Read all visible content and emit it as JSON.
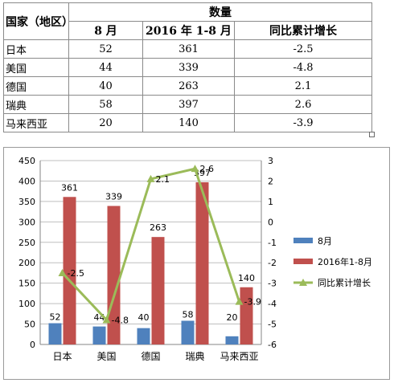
{
  "table": {
    "header_country": "国家（地区）",
    "header_quantity": "数量",
    "col_labels": [
      "8 月",
      "2016 年 1-8 月",
      "同比累计增长"
    ],
    "rows": [
      {
        "country": "日本",
        "aug": "52",
        "ytd": "361",
        "growth": "-2.5"
      },
      {
        "country": "美国",
        "aug": "44",
        "ytd": "339",
        "growth": "-4.8"
      },
      {
        "country": "德国",
        "aug": "40",
        "ytd": "263",
        "growth": "2.1"
      },
      {
        "country": "瑞典",
        "aug": "58",
        "ytd": "397",
        "growth": "2.6"
      },
      {
        "country": "马来西亚",
        "aug": "20",
        "ytd": "140",
        "growth": "-3.9"
      }
    ]
  },
  "chart_data": {
    "type": "bar",
    "categories": [
      "日本",
      "美国",
      "德国",
      "瑞典",
      "马来西亚"
    ],
    "series": [
      {
        "name": "8月",
        "type": "bar",
        "axis": "left",
        "color": "#4f81bd",
        "values": [
          52,
          44,
          40,
          58,
          20
        ]
      },
      {
        "name": "2016年1-8月",
        "type": "bar",
        "axis": "left",
        "color": "#c0504d",
        "values": [
          361,
          339,
          263,
          397,
          140
        ]
      },
      {
        "name": "同比累计增长",
        "type": "line",
        "axis": "right",
        "color": "#9bbb59",
        "values": [
          -2.5,
          -4.8,
          2.1,
          2.6,
          -3.9
        ]
      }
    ],
    "ylim": [
      0,
      450
    ],
    "yticks": [
      "0",
      "50",
      "100",
      "150",
      "200",
      "250",
      "300",
      "350",
      "400",
      "450"
    ],
    "y2lim": [
      -6,
      3
    ],
    "y2ticks": [
      "-6",
      "-5",
      "-4",
      "-3",
      "-2",
      "-1",
      "0",
      "1",
      "2",
      "3"
    ],
    "grid": true,
    "legend": "right"
  }
}
